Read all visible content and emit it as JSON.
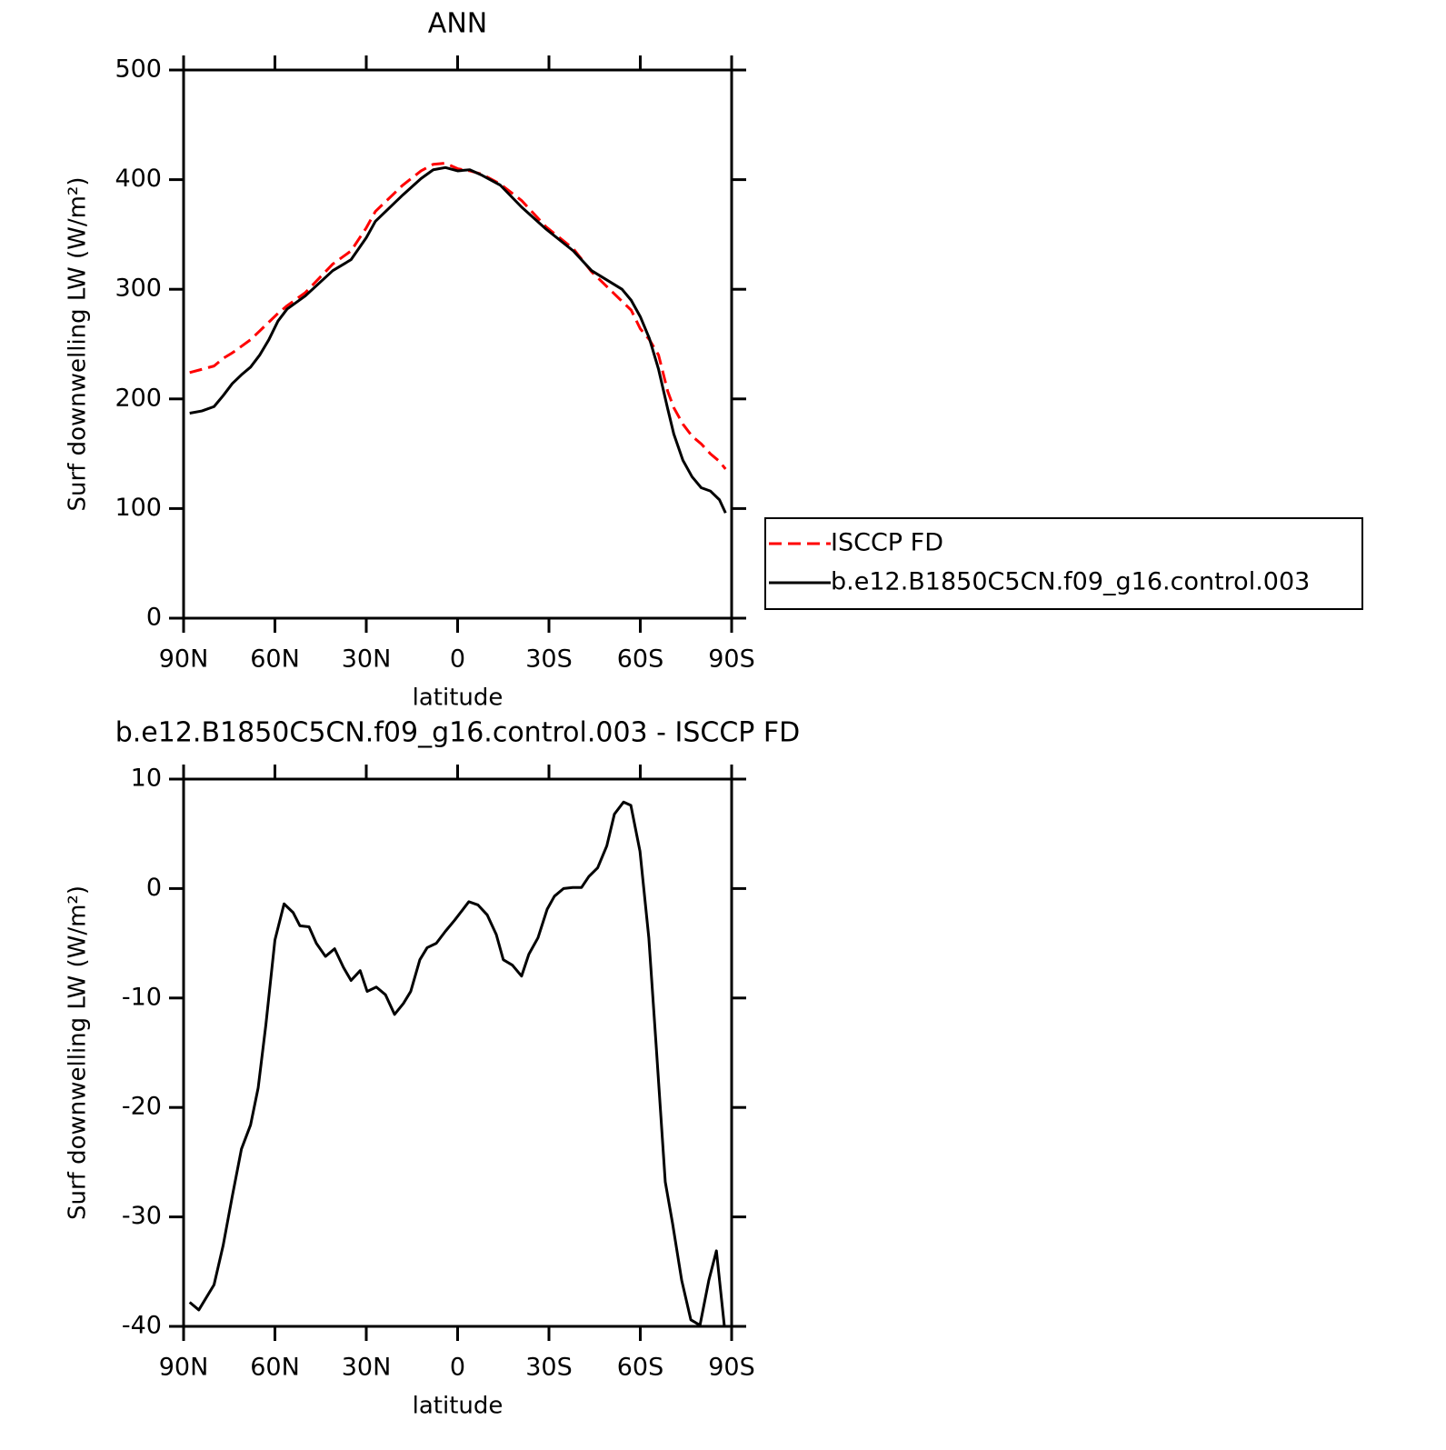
{
  "chart_data": [
    {
      "type": "line",
      "title": "ANN",
      "xlabel": "latitude",
      "ylabel": "Surf downwelling LW (W/m²)",
      "x": [
        88,
        84,
        80,
        77,
        74,
        71,
        68,
        65,
        62,
        59,
        56,
        50,
        41,
        35,
        30,
        27,
        18,
        12,
        8,
        4,
        0,
        -4,
        -8,
        -14,
        -21,
        -29,
        -38,
        -44,
        -54,
        -57,
        -60,
        -63,
        -66,
        -69,
        -71,
        -74,
        -77,
        -80,
        -83,
        -86,
        -88
      ],
      "series": [
        {
          "name": "ISCCP FD",
          "color": "#ff0000",
          "linestyle": "dashed",
          "values": [
            224,
            227,
            230,
            237,
            242,
            248,
            254,
            262,
            270,
            278,
            285,
            297,
            323,
            335,
            356,
            371,
            395,
            408,
            414,
            415,
            410,
            408,
            405,
            396,
            381,
            357,
            337,
            316,
            289,
            281,
            264,
            254,
            240,
            207,
            192,
            177,
            166,
            159,
            150,
            143,
            136
          ]
        },
        {
          "name": "b.e12.B1850C5CN.f09_g16.control.003",
          "color": "#000000",
          "linestyle": "solid",
          "values": [
            187,
            189,
            193,
            203,
            214,
            222,
            229,
            240,
            254,
            271,
            282,
            294,
            317,
            327,
            347,
            362,
            386,
            401,
            409,
            411,
            408,
            409,
            404,
            395,
            375,
            355,
            335,
            317,
            300,
            290,
            275,
            255,
            227,
            191,
            168,
            144,
            129,
            119,
            116,
            108,
            96
          ]
        }
      ],
      "xlim": [
        90,
        -90
      ],
      "xticks": [
        {
          "value": 90,
          "label": "90N"
        },
        {
          "value": 60,
          "label": "60N"
        },
        {
          "value": 30,
          "label": "30N"
        },
        0,
        {
          "value": -30,
          "label": "30S"
        },
        {
          "value": -60,
          "label": "60S"
        },
        {
          "value": -90,
          "label": "90S"
        }
      ],
      "ylim": [
        0,
        500
      ],
      "yticks": [
        0,
        100,
        200,
        300,
        400,
        500
      ],
      "legend": "outside-right"
    },
    {
      "type": "line",
      "title": "b.e12.B1850C5CN.f09_g16.control.003 - ISCCP FD",
      "xlabel": "latitude",
      "ylabel": "Surf downwelling LW (W/m²)",
      "x": [
        88,
        85,
        80,
        77,
        74,
        71,
        68,
        65.5,
        63,
        60,
        57,
        54,
        51.8,
        48.8,
        46.4,
        43.4,
        40.4,
        37.5,
        35,
        32,
        29.7,
        26.7,
        23.7,
        20.7,
        17.8,
        15.4,
        12.4,
        10,
        7,
        4,
        1,
        -3.7,
        -6.7,
        -9.7,
        -12.7,
        -15,
        -18,
        -21,
        -23.4,
        -26.4,
        -29.4,
        -31.8,
        -34.8,
        -37.8,
        -40.7,
        -43.1,
        -46,
        -49,
        -51.5,
        -54.5,
        -56.9,
        -59.9,
        -62.8,
        -65.2,
        -68.2,
        -70.6,
        -73.6,
        -76.6,
        -79.6,
        -82.5,
        -85,
        -88
      ],
      "series": [
        {
          "color": "#000000",
          "linestyle": "solid",
          "values": [
            -37.8,
            -38.5,
            -36.2,
            -32.6,
            -28.1,
            -23.8,
            -21.6,
            -18.2,
            -12.5,
            -4.7,
            -1.4,
            -2.2,
            -3.4,
            -3.5,
            -5.0,
            -6.2,
            -5.5,
            -7.2,
            -8.4,
            -7.5,
            -9.4,
            -9.0,
            -9.7,
            -11.5,
            -10.5,
            -9.4,
            -6.5,
            -5.4,
            -5.0,
            -3.9,
            -2.9,
            -1.2,
            -1.5,
            -2.4,
            -4.2,
            -6.5,
            -7.0,
            -8.0,
            -6.0,
            -4.5,
            -1.9,
            -0.7,
            0,
            0.1,
            0.1,
            1.1,
            1.9,
            3.9,
            6.8,
            7.9,
            7.6,
            3.4,
            -4.5,
            -14.3,
            -26.8,
            -30.6,
            -35.8,
            -39.4,
            -39.9,
            -35.8,
            -33.1,
            -41
          ]
        }
      ],
      "xlim": [
        90,
        -90
      ],
      "xticks": [
        {
          "value": 90,
          "label": "90N"
        },
        {
          "value": 60,
          "label": "60N"
        },
        {
          "value": 30,
          "label": "30N"
        },
        0,
        {
          "value": -30,
          "label": "30S"
        },
        {
          "value": -60,
          "label": "60S"
        },
        {
          "value": -90,
          "label": "90S"
        }
      ],
      "ylim": [
        -40,
        10
      ],
      "yticks": [
        -40,
        -30,
        -20,
        -10,
        0,
        10
      ]
    }
  ]
}
